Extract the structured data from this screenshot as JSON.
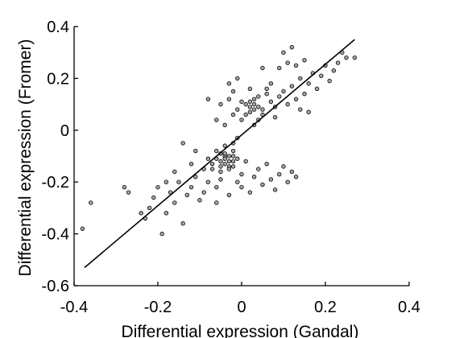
{
  "chart_data": {
    "type": "scatter",
    "title": "",
    "xlabel": "Differential expression (Gandal)",
    "ylabel": "Differential expression (Fromer)",
    "xlim": [
      -0.4,
      0.4
    ],
    "ylim": [
      -0.6,
      0.4
    ],
    "xticks": [
      -0.4,
      -0.2,
      0,
      0.2,
      0.4
    ],
    "xtick_labels": [
      "-0.4",
      "-0.2",
      "0",
      "0.2",
      "0.4"
    ],
    "yticks": [
      -0.6,
      -0.4,
      -0.2,
      0,
      0.2,
      0.4
    ],
    "ytick_labels": [
      "-0.6",
      "-0.4",
      "-0.2",
      "0",
      "0.2",
      "0.4"
    ],
    "grid": false,
    "point_color": "#a6a6a6",
    "point_edge_color": "#000000",
    "fit_line": {
      "x": [
        -0.375,
        0.27
      ],
      "y": [
        -0.53,
        0.35
      ],
      "color": "#000000"
    },
    "points": [
      [
        -0.38,
        -0.38
      ],
      [
        -0.36,
        -0.28
      ],
      [
        -0.28,
        -0.22
      ],
      [
        -0.27,
        -0.24
      ],
      [
        -0.24,
        -0.32
      ],
      [
        -0.23,
        -0.34
      ],
      [
        -0.22,
        -0.3
      ],
      [
        -0.21,
        -0.26
      ],
      [
        -0.2,
        -0.22
      ],
      [
        -0.19,
        -0.4
      ],
      [
        -0.18,
        -0.32
      ],
      [
        -0.17,
        -0.24
      ],
      [
        -0.16,
        -0.28
      ],
      [
        -0.15,
        -0.2
      ],
      [
        -0.14,
        -0.36
      ],
      [
        -0.13,
        -0.25
      ],
      [
        -0.12,
        -0.22
      ],
      [
        -0.11,
        -0.18
      ],
      [
        -0.1,
        -0.27
      ],
      [
        -0.09,
        -0.15
      ],
      [
        -0.08,
        -0.2
      ],
      [
        -0.07,
        -0.13
      ],
      [
        -0.06,
        -0.22
      ],
      [
        -0.05,
        -0.16
      ],
      [
        -0.04,
        -0.1
      ],
      [
        -0.03,
        -0.14
      ],
      [
        -0.02,
        -0.08
      ],
      [
        -0.01,
        -0.2
      ],
      [
        0.0,
        -0.17
      ],
      [
        0.01,
        -0.12
      ],
      [
        0.02,
        -0.24
      ],
      [
        0.03,
        -0.18
      ],
      [
        0.04,
        -0.15
      ],
      [
        0.05,
        -0.21
      ],
      [
        0.06,
        -0.13
      ],
      [
        0.07,
        -0.19
      ],
      [
        0.08,
        -0.23
      ],
      [
        0.09,
        -0.17
      ],
      [
        0.1,
        -0.14
      ],
      [
        0.11,
        -0.2
      ],
      [
        0.12,
        -0.16
      ],
      [
        0.13,
        -0.18
      ],
      [
        -0.14,
        -0.05
      ],
      [
        -0.09,
        -0.24
      ],
      [
        -0.06,
        -0.08
      ],
      [
        -0.02,
        -0.05
      ],
      [
        -0.01,
        -0.03
      ],
      [
        -0.08,
        -0.11
      ],
      [
        -0.05,
        -0.09
      ],
      [
        -0.12,
        -0.13
      ],
      [
        -0.16,
        -0.16
      ],
      [
        -0.18,
        -0.2
      ],
      [
        -0.06,
        -0.28
      ],
      [
        -0.03,
        -0.25
      ],
      [
        0.0,
        -0.22
      ],
      [
        -0.11,
        -0.08
      ],
      [
        -0.04,
        -0.06
      ],
      [
        -0.07,
        -0.15
      ],
      [
        -0.02,
        -0.12
      ],
      [
        -0.05,
        -0.19
      ],
      [
        -0.03,
        -0.1
      ],
      [
        -0.04,
        -0.13
      ],
      [
        -0.02,
        -0.14
      ],
      [
        -0.05,
        -0.12
      ],
      [
        -0.03,
        -0.15
      ],
      [
        -0.06,
        -0.11
      ],
      [
        -0.01,
        -0.11
      ],
      [
        -0.04,
        -0.09
      ],
      [
        -0.03,
        -0.12
      ],
      [
        -0.02,
        -0.1
      ],
      [
        -0.05,
        -0.14
      ],
      [
        -0.04,
        -0.11
      ],
      [
        0.01,
        0.1
      ],
      [
        0.02,
        0.07
      ],
      [
        0.03,
        0.12
      ],
      [
        0.04,
        0.09
      ],
      [
        0.02,
        0.11
      ],
      [
        0.03,
        0.08
      ],
      [
        0.01,
        0.06
      ],
      [
        0.04,
        0.13
      ],
      [
        0.03,
        0.1
      ],
      [
        0.02,
        0.09
      ],
      [
        0.05,
        0.08
      ],
      [
        0.0,
        0.11
      ],
      [
        -0.03,
        0.12
      ],
      [
        -0.01,
        0.08
      ],
      [
        0.06,
        0.14
      ],
      [
        0.05,
        0.06
      ],
      [
        -0.02,
        0.15
      ],
      [
        -0.03,
        0.18
      ],
      [
        -0.01,
        0.2
      ],
      [
        -0.02,
        0.06
      ],
      [
        -0.05,
        0.1
      ],
      [
        0.0,
        0.04
      ],
      [
        0.07,
        0.11
      ],
      [
        0.08,
        0.09
      ],
      [
        0.09,
        0.13
      ],
      [
        0.1,
        0.15
      ],
      [
        0.11,
        0.1
      ],
      [
        0.12,
        0.17
      ],
      [
        0.13,
        0.12
      ],
      [
        0.14,
        0.2
      ],
      [
        0.15,
        0.14
      ],
      [
        0.16,
        0.18
      ],
      [
        0.17,
        0.22
      ],
      [
        0.18,
        0.16
      ],
      [
        0.19,
        0.21
      ],
      [
        0.2,
        0.25
      ],
      [
        0.21,
        0.19
      ],
      [
        0.22,
        0.23
      ],
      [
        0.23,
        0.26
      ],
      [
        0.24,
        0.3
      ],
      [
        0.25,
        0.28
      ],
      [
        0.27,
        0.28
      ],
      [
        0.11,
        0.26
      ],
      [
        0.12,
        0.32
      ],
      [
        0.1,
        0.3
      ],
      [
        0.13,
        0.25
      ],
      [
        0.15,
        0.27
      ],
      [
        0.09,
        0.24
      ],
      [
        0.05,
        0.24
      ],
      [
        0.07,
        0.18
      ],
      [
        -0.08,
        0.12
      ],
      [
        -0.06,
        0.04
      ],
      [
        0.02,
        0.16
      ],
      [
        0.04,
        0.04
      ],
      [
        0.06,
        0.16
      ],
      [
        0.14,
        0.08
      ],
      [
        0.08,
        0.05
      ],
      [
        0.16,
        0.07
      ],
      [
        -0.04,
        0.02
      ],
      [
        0.03,
        0.02
      ]
    ]
  }
}
